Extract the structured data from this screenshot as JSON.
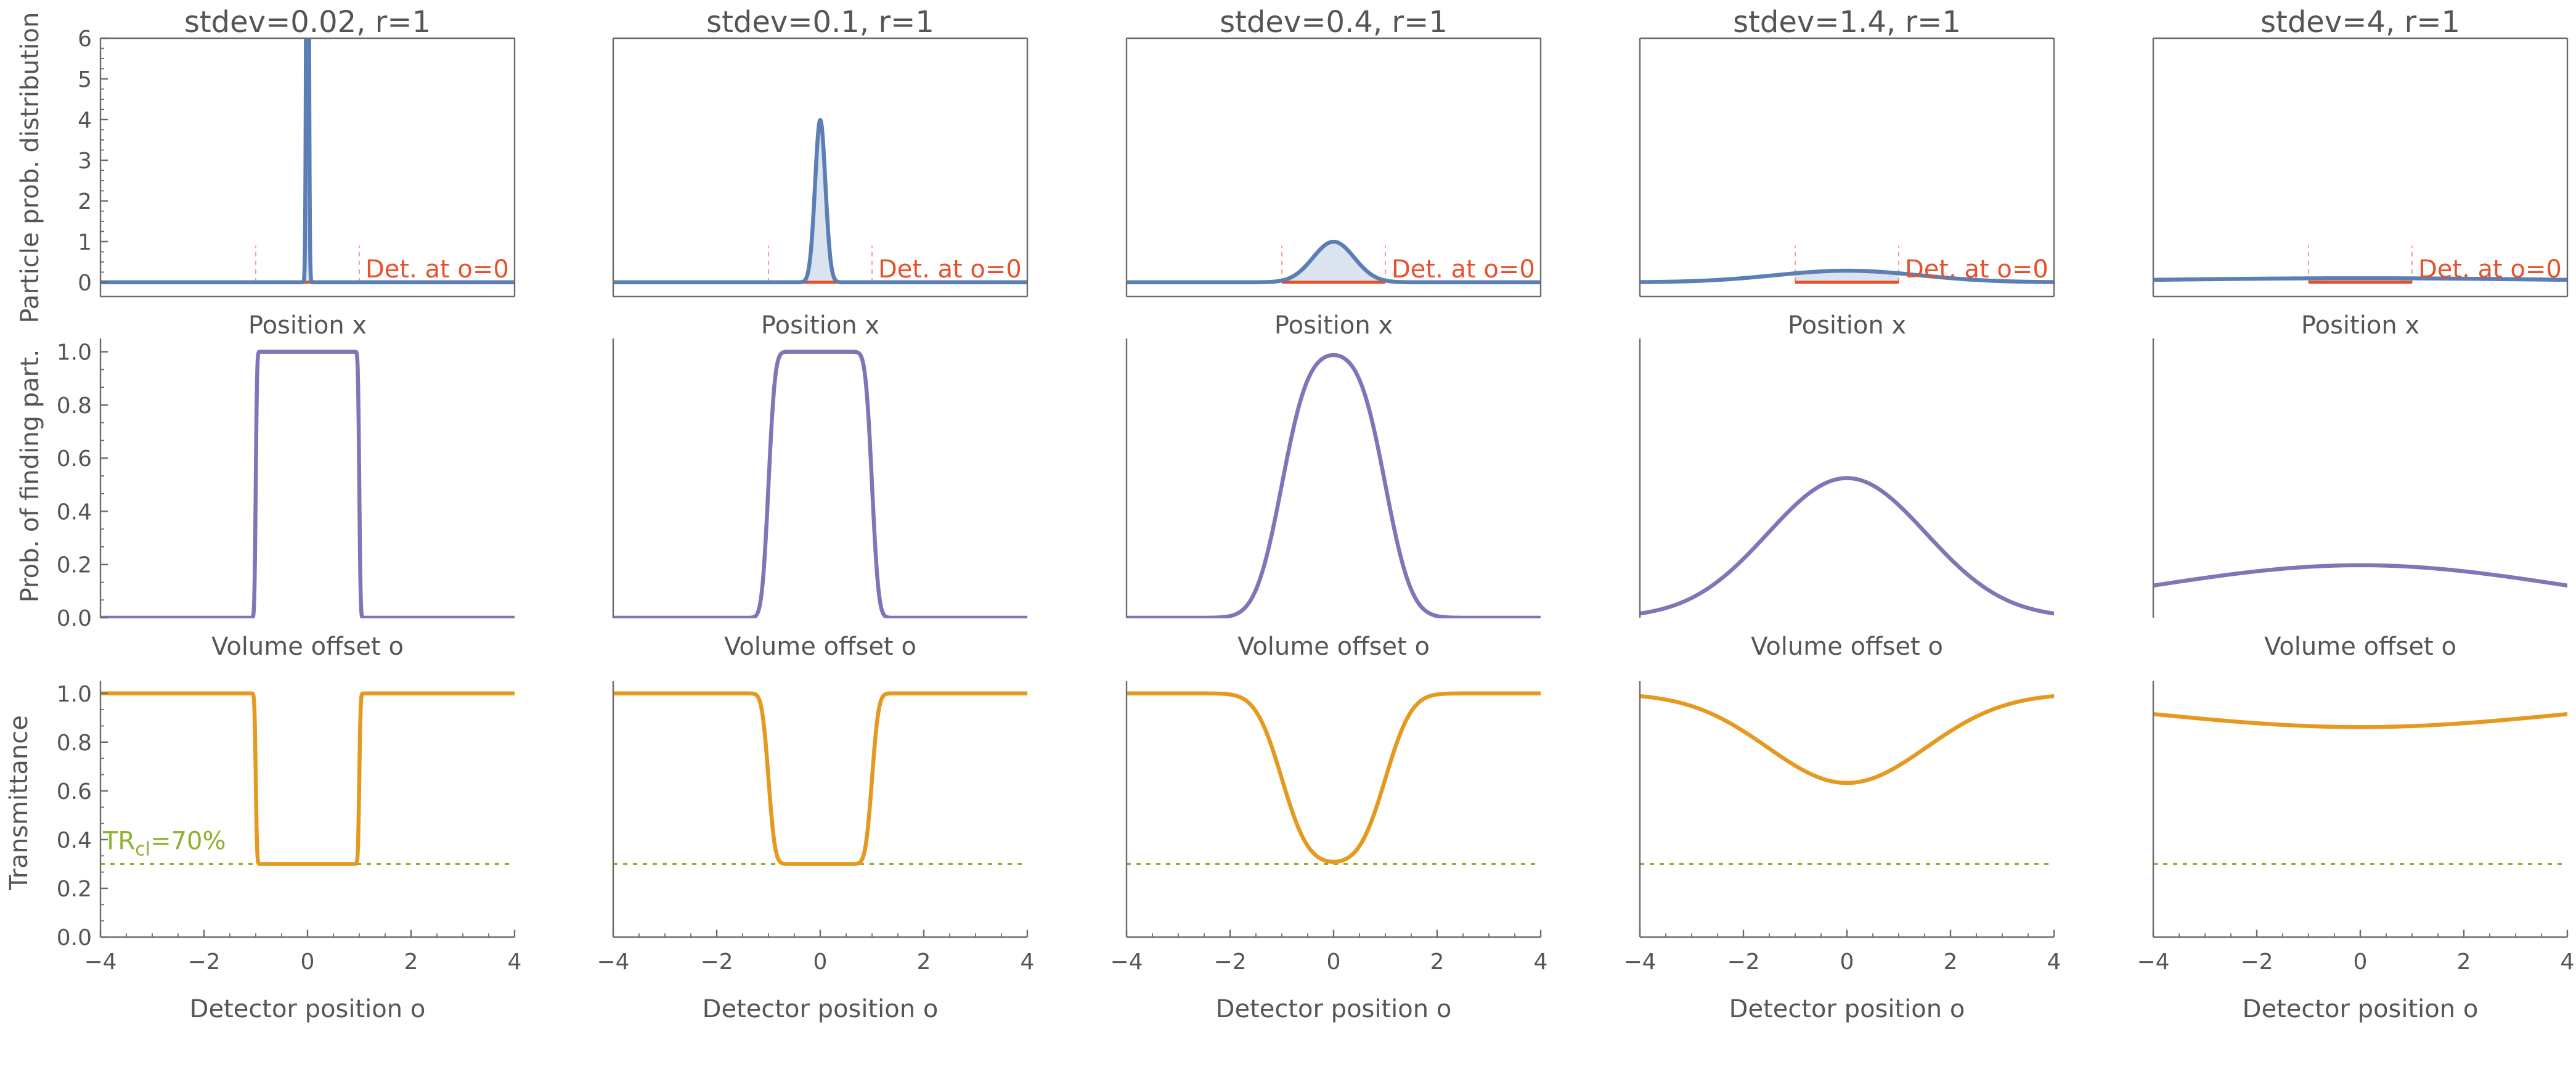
{
  "colors": {
    "axis": "#6b6b6b",
    "text": "#555555",
    "distribution": "#5b7fb5",
    "distribution_fill": "#dbe3ee",
    "probability": "#7e76b6",
    "transmittance": "#e59a1f",
    "detector": "#e8502a",
    "threshold": "#8db22b"
  },
  "chart_data": {
    "type": "line",
    "layout": "3 rows x 5 columns",
    "x_range": [
      -4,
      4
    ],
    "x_ticks": [
      -4,
      -2,
      0,
      2,
      4
    ],
    "x_tick_labels": [
      "−4",
      "−2",
      "0",
      "2",
      "4"
    ],
    "detector_radius": 1,
    "columns": [
      {
        "title": "stdev=0.02, r=1",
        "stdev": 0.02,
        "r": 1
      },
      {
        "title": "stdev=0.1, r=1",
        "stdev": 0.1,
        "r": 1
      },
      {
        "title": "stdev=0.4, r=1",
        "stdev": 0.4,
        "r": 1
      },
      {
        "title": "stdev=1.4, r=1",
        "stdev": 1.4,
        "r": 1
      },
      {
        "title": "stdev=4, r=1",
        "stdev": 4,
        "r": 1
      }
    ],
    "rows": [
      {
        "id": "distribution",
        "ylabel": "Particle prob. distribution",
        "xlabel": "Position x",
        "ylim": [
          -0.35,
          6
        ],
        "yticks": [
          0,
          1,
          2,
          3,
          4,
          5,
          6
        ],
        "ytick_labels": [
          "0",
          "1",
          "2",
          "3",
          "4",
          "5",
          "6"
        ],
        "show_x_ticks": false,
        "curve": "Gaussian density N(0, stdev) over position x",
        "detector_annotation": "Det. at o=0",
        "detector_interval": [
          -1,
          1
        ]
      },
      {
        "id": "probability",
        "ylabel": "Prob. of finding part.",
        "xlabel": "Volume offset o",
        "ylim": [
          0,
          1.05
        ],
        "yticks": [
          0,
          0.2,
          0.4,
          0.6,
          0.8,
          1.0
        ],
        "ytick_labels": [
          "0.0",
          "0.2",
          "0.4",
          "0.6",
          "0.8",
          "1.0"
        ],
        "show_x_ticks": false,
        "curve": "P(o) = Phi((o+r)/stdev) - Phi((o-r)/stdev)",
        "peak_values": [
          1.0,
          1.0,
          0.988,
          0.52,
          0.197
        ]
      },
      {
        "id": "transmittance",
        "ylabel": "Transmittance",
        "xlabel": "Detector position o",
        "ylim": [
          0,
          1.05
        ],
        "yticks": [
          0,
          0.2,
          0.4,
          0.6,
          0.8,
          1.0
        ],
        "ytick_labels": [
          "0.0",
          "0.2",
          "0.4",
          "0.6",
          "0.8",
          "1.0"
        ],
        "show_x_ticks": true,
        "curve": "T(o) = 1 - TRcl * P(o)",
        "threshold_value": 0.3,
        "threshold_label_main": "TR",
        "threshold_label_sub": "cl",
        "threshold_label_tail": "=70%",
        "min_values": [
          0.3,
          0.3,
          0.308,
          0.636,
          0.862
        ]
      }
    ]
  }
}
